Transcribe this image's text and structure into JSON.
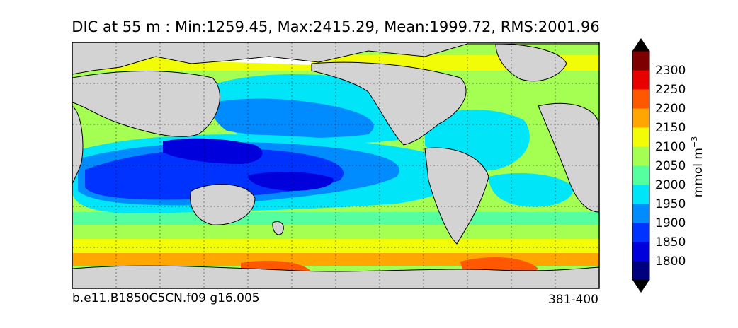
{
  "title": "DIC at 55 m : Min:1259.45, Max:2415.29, Mean:1999.72, RMS:2001.96",
  "footer": {
    "case_name": "b.e11.B1850C5CN.f09 g16.005",
    "years": "381-400"
  },
  "colorbar": {
    "units_base": "mmol m",
    "units_exp": "−3",
    "levels": [
      1750,
      1800,
      1850,
      1900,
      1950,
      2000,
      2050,
      2100,
      2150,
      2200,
      2250,
      2300,
      2350
    ],
    "tick_labels": [
      "1800",
      "1850",
      "1900",
      "1950",
      "2000",
      "2050",
      "2100",
      "2150",
      "2200",
      "2250",
      "2300"
    ],
    "colors": [
      "#00007f",
      "#0000dd",
      "#0033ff",
      "#008cff",
      "#00e5f7",
      "#55ff9f",
      "#a4ff52",
      "#f1fc06",
      "#ffa700",
      "#ff5800",
      "#e80000",
      "#7f0000"
    ],
    "under_color": "#000000",
    "over_color": "#000000"
  },
  "map": {
    "land_color": "#d3d3d3",
    "ice_color": "#ffffff",
    "gridline_style": "dotted"
  }
}
